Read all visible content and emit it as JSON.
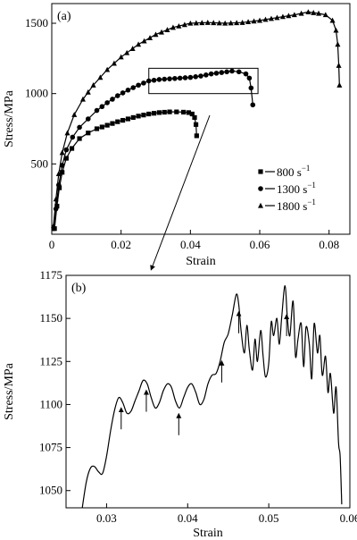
{
  "chart_data": [
    {
      "panel": "(a)",
      "type": "line",
      "xlabel": "Strain",
      "ylabel": "Stress/MPa",
      "xlim": [
        0,
        0.086
      ],
      "ylim": [
        0,
        1640
      ],
      "x_ticks": [
        "0",
        "0.02",
        "0.04",
        "0.06",
        "0.08"
      ],
      "x_tick_values": [
        0,
        0.02,
        0.04,
        0.06,
        0.08
      ],
      "y_ticks": [
        "500",
        "1000",
        "1500"
      ],
      "y_tick_values": [
        500,
        1000,
        1500
      ],
      "legend_position": "right",
      "inset_box": {
        "x": [
          0.028,
          0.0595
        ],
        "y": [
          1000,
          1180
        ]
      },
      "series": [
        {
          "name": "800 s",
          "name_superscript": "−1",
          "marker": "square",
          "x": [
            0.0008,
            0.0015,
            0.0022,
            0.003,
            0.0042,
            0.0058,
            0.008,
            0.0105,
            0.013,
            0.016,
            0.019,
            0.022,
            0.025,
            0.028,
            0.031,
            0.034,
            0.036,
            0.038,
            0.0395,
            0.0405,
            0.0412,
            0.0416,
            0.0418
          ],
          "y": [
            40,
            200,
            330,
            440,
            540,
            610,
            680,
            720,
            750,
            775,
            800,
            820,
            840,
            855,
            865,
            870,
            870,
            868,
            865,
            855,
            830,
            780,
            700
          ]
        },
        {
          "name": "1300 s",
          "name_superscript": "−1",
          "marker": "circle",
          "x": [
            0.0006,
            0.0012,
            0.002,
            0.003,
            0.0042,
            0.006,
            0.008,
            0.0105,
            0.013,
            0.016,
            0.019,
            0.022,
            0.025,
            0.028,
            0.031,
            0.034,
            0.037,
            0.04,
            0.043,
            0.046,
            0.049,
            0.052,
            0.054,
            0.056,
            0.057,
            0.0575,
            0.058
          ],
          "y": [
            40,
            180,
            350,
            490,
            600,
            690,
            760,
            820,
            880,
            935,
            985,
            1025,
            1060,
            1090,
            1100,
            1105,
            1110,
            1115,
            1125,
            1140,
            1150,
            1160,
            1155,
            1140,
            1110,
            1040,
            920
          ]
        },
        {
          "name": "1800 s",
          "name_superscript": "−1",
          "marker": "triangle",
          "x": [
            0.0005,
            0.0012,
            0.002,
            0.003,
            0.0045,
            0.0065,
            0.009,
            0.012,
            0.016,
            0.02,
            0.025,
            0.03,
            0.035,
            0.04,
            0.045,
            0.05,
            0.055,
            0.06,
            0.065,
            0.07,
            0.074,
            0.077,
            0.079,
            0.081,
            0.082,
            0.0825,
            0.0828,
            0.083
          ],
          "y": [
            60,
            250,
            430,
            580,
            720,
            850,
            960,
            1060,
            1170,
            1260,
            1350,
            1420,
            1470,
            1500,
            1505,
            1500,
            1505,
            1520,
            1540,
            1560,
            1580,
            1570,
            1560,
            1520,
            1450,
            1350,
            1200,
            1060
          ]
        }
      ]
    },
    {
      "panel": "(b)",
      "type": "line",
      "xlabel": "Strain",
      "ylabel": "Stress/MPa",
      "xlim": [
        0.025,
        0.06
      ],
      "ylim": [
        1040,
        1175
      ],
      "x_ticks": [
        "0.03",
        "0.04",
        "0.05",
        "0.06"
      ],
      "x_tick_values": [
        0.03,
        0.04,
        0.05,
        0.06
      ],
      "y_ticks": [
        "1050",
        "1075",
        "1100",
        "1125",
        "1150",
        "1175"
      ],
      "y_tick_values": [
        1050,
        1075,
        1100,
        1125,
        1150,
        1175
      ],
      "series": [
        {
          "x": [
            0.027,
            0.0275,
            0.028,
            0.0285,
            0.029,
            0.0295,
            0.03,
            0.0305,
            0.031,
            0.0315,
            0.032,
            0.0325,
            0.033,
            0.0335,
            0.034,
            0.0345,
            0.035,
            0.0355,
            0.036,
            0.0365,
            0.037,
            0.0375,
            0.038,
            0.0385,
            0.039,
            0.0395,
            0.04,
            0.0405,
            0.041,
            0.0415,
            0.042,
            0.0425,
            0.043,
            0.0435,
            0.044,
            0.0445,
            0.045,
            0.0455,
            0.046,
            0.0463,
            0.0466,
            0.047,
            0.0473,
            0.0476,
            0.048,
            0.0483,
            0.0486,
            0.049,
            0.0493,
            0.0496,
            0.05,
            0.0503,
            0.0506,
            0.051,
            0.0513,
            0.0516,
            0.052,
            0.0523,
            0.0526,
            0.053,
            0.0533,
            0.0536,
            0.054,
            0.0543,
            0.0546,
            0.055,
            0.0553,
            0.0556,
            0.056,
            0.0563,
            0.0566,
            0.057,
            0.0573,
            0.0576,
            0.058,
            0.0583,
            0.0586,
            0.0588,
            0.059
          ],
          "y": [
            1040,
            1055,
            1063,
            1064,
            1061,
            1060,
            1070,
            1085,
            1097,
            1104,
            1101,
            1095,
            1096,
            1102,
            1108,
            1114,
            1112,
            1104,
            1098,
            1101,
            1108,
            1112,
            1110,
            1102,
            1098,
            1104,
            1110,
            1112,
            1107,
            1100,
            1103,
            1112,
            1117,
            1118,
            1125,
            1136,
            1141,
            1152,
            1164,
            1158,
            1142,
            1130,
            1146,
            1132,
            1120,
            1138,
            1125,
            1143,
            1128,
            1116,
            1124,
            1148,
            1140,
            1150,
            1135,
            1151,
            1169,
            1150,
            1140,
            1160,
            1128,
            1138,
            1147,
            1122,
            1145,
            1135,
            1115,
            1147,
            1130,
            1140,
            1117,
            1128,
            1107,
            1118,
            1095,
            1110,
            1078,
            1070,
            1042
          ]
        }
      ],
      "arrows_at_x": [
        0.0318,
        0.0349,
        0.0389,
        0.0442,
        0.0463,
        0.0522
      ]
    }
  ]
}
